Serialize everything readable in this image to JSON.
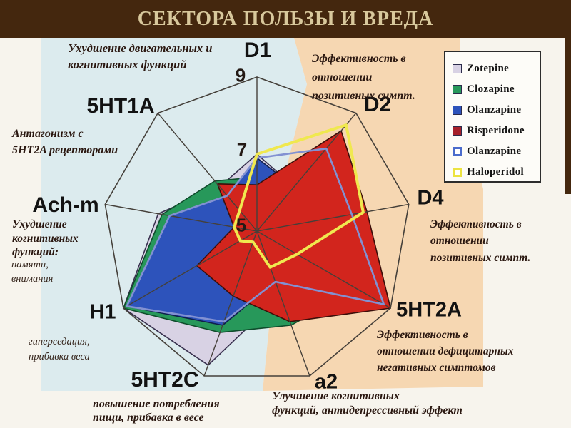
{
  "header": {
    "title": "СЕКТОРА ПОЛЬЗЫ И ВРЕДА"
  },
  "colors": {
    "titlebar": "#44270e",
    "title_text": "#d8c89c",
    "page_bg": "#f7f4ed",
    "sector_left": "#dcebee",
    "sector_right": "#f6d7b2",
    "grid": "#45403a"
  },
  "legend": {
    "items": [
      {
        "label": "Zotepine",
        "color": "#d8d2e4",
        "outline": false
      },
      {
        "label": "Clozapine",
        "color": "#27985a",
        "outline": false
      },
      {
        "label": "Olanzapine",
        "color": "#2d53bb",
        "outline": false
      },
      {
        "label": "Risperidone",
        "color": "#a6202a",
        "outline": false
      },
      {
        "label": "Olanzapine",
        "color": "#4b6ccc",
        "outline": true
      },
      {
        "label": "Haloperidol",
        "color": "#ece340",
        "outline": true
      }
    ]
  },
  "chart_data": {
    "type": "radar",
    "axes": [
      {
        "label": "D1"
      },
      {
        "label": "D2"
      },
      {
        "label": "D4"
      },
      {
        "label": "5HT2A"
      },
      {
        "label": "a2"
      },
      {
        "label": "5HT2C"
      },
      {
        "label": "H1"
      },
      {
        "label": "Ach-m"
      },
      {
        "label": "5HT1A"
      }
    ],
    "scale": {
      "min": 5,
      "max": 9,
      "tick_values": [
        9,
        7,
        5
      ],
      "tick_labels": [
        "9",
        "7",
        "5"
      ]
    },
    "grid": "spokes-and-outer-ring",
    "legend_position": "top-right",
    "series": [
      {
        "name": "Zotepine",
        "filled": true,
        "color": "#d8d2e4",
        "stroke": "#39314f",
        "values": [
          7.0,
          6.5,
          6.3,
          6.8,
          6.8,
          8.7,
          9.0,
          7.6,
          6.5
        ]
      },
      {
        "name": "Clozapine",
        "filled": true,
        "color": "#27985a",
        "stroke": "#0f4d2c",
        "values": [
          6.4,
          6.3,
          6.6,
          8.0,
          7.6,
          7.8,
          9.0,
          7.5,
          6.7
        ]
      },
      {
        "name": "Olanzapine",
        "filled": true,
        "color": "#2d53bb",
        "stroke": "#101f4d",
        "values": [
          6.9,
          6.5,
          7.0,
          8.8,
          6.4,
          7.6,
          8.9,
          7.3,
          6.2
        ]
      },
      {
        "name": "Risperidone",
        "filled": true,
        "color": "#d2251d",
        "stroke": "#3c0f0a",
        "values": [
          6.2,
          8.4,
          7.9,
          9.0,
          7.5,
          6.8,
          6.8,
          5.6,
          6.6
        ]
      },
      {
        "name": "Olanzapine",
        "filled": false,
        "color": "#8291d2",
        "stroke": "#8291d2",
        "values": [
          6.9,
          7.8,
          7.5,
          8.8,
          6.4,
          7.5,
          8.9,
          7.3,
          6.2
        ]
      },
      {
        "name": "Haloperidol",
        "filled": false,
        "color": "#f0e84f",
        "stroke": "#f0e84f",
        "values": [
          7.0,
          8.6,
          7.8,
          6.2,
          6.0,
          5.3,
          5.5,
          5.6,
          5.7
        ]
      }
    ]
  },
  "annotations": {
    "motor": [
      "Ухудшение двигательных и",
      "когнитивных функций"
    ],
    "pos_top": [
      "Эффективность в",
      "отношении",
      "позитивных симпт."
    ],
    "antagonism": [
      "Антагонизм с",
      "5HT2A рецепторами"
    ],
    "cognitive_bold": [
      "Ухудшение",
      "когнитивных",
      "функций:"
    ],
    "cognitive_light": [
      "памяти,",
      "внимания"
    ],
    "hypersedation": [
      "гиперседация,",
      "прибавка веса"
    ],
    "food": [
      "повышение потребления",
      "пищи, прибавка в весе"
    ],
    "improvement": [
      "Улучшение когнитивных",
      "функций, антидепрессивный эффект"
    ],
    "pos_right": [
      "Эффективность в",
      "отношении",
      "позитивных симпт."
    ],
    "negative": [
      "Эффективность в",
      "отношении дефицитарных",
      "негативных симптомов"
    ]
  }
}
